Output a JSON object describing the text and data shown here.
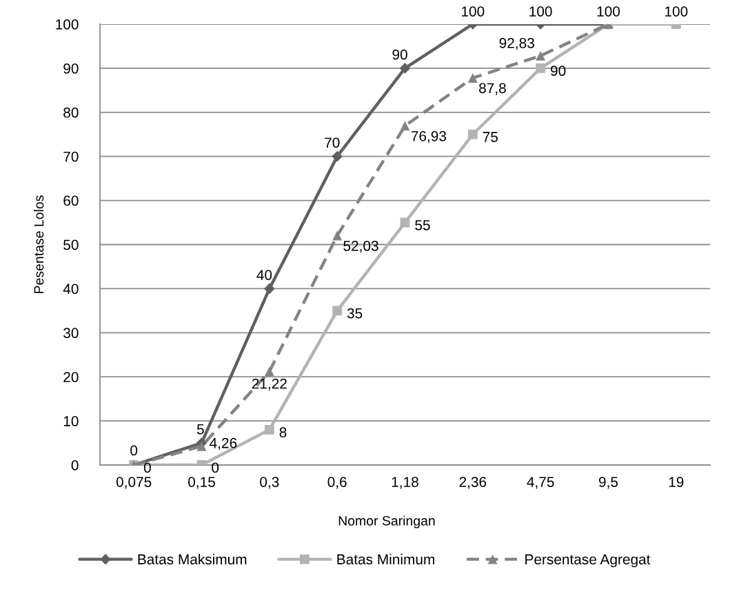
{
  "chart_data": {
    "type": "line",
    "xlabel": "Nomor Saringan",
    "ylabel": "Pesentase Lolos",
    "categories": [
      "0,075",
      "0,15",
      "0,3",
      "0,6",
      "1,18",
      "2,36",
      "4,75",
      "9,5",
      "19"
    ],
    "ylim": [
      0,
      100
    ],
    "yticks": [
      0,
      10,
      20,
      30,
      40,
      50,
      60,
      70,
      80,
      90,
      100
    ],
    "grid": "y",
    "legend": "bottom",
    "series": [
      {
        "name": "Batas Maksimum",
        "color": "#606060",
        "marker": "diamond",
        "line_style": "solid",
        "values": [
          0,
          5,
          40,
          70,
          90,
          100,
          100,
          100,
          null
        ],
        "value_labels": [
          "0",
          "5",
          "40",
          "70",
          "90",
          "100",
          "100",
          "100",
          null
        ]
      },
      {
        "name": "Batas Minimum",
        "color": "#b3b3b3",
        "marker": "square",
        "line_style": "solid",
        "values": [
          0,
          0,
          8,
          35,
          55,
          75,
          90,
          100,
          100
        ],
        "value_labels": [
          "0",
          "0",
          "8",
          "35",
          "55",
          "75",
          "90",
          null,
          "100"
        ]
      },
      {
        "name": "Persentase Agregat",
        "color": "#838383",
        "marker": "triangle",
        "line_style": "dashed",
        "values": [
          0,
          4.26,
          21.22,
          52.03,
          76.93,
          87.8,
          92.83,
          100,
          null
        ],
        "value_labels": [
          null,
          "4,26",
          "21,22",
          "52,03",
          "76,93",
          "87,8",
          "92,83",
          null,
          null
        ]
      }
    ]
  }
}
